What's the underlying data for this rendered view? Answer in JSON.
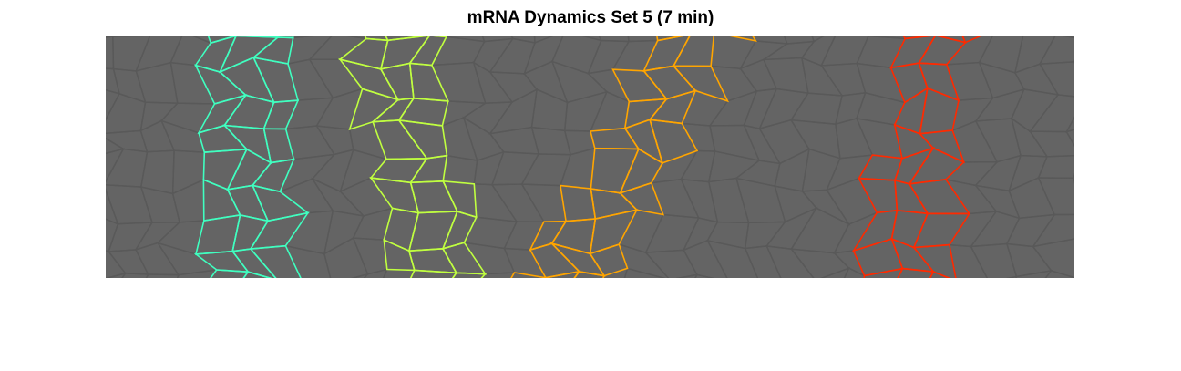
{
  "figure": {
    "title": "mRNA Dynamics Set 5 (7 min)"
  },
  "colors": {
    "background": "#ffffff",
    "tissue_fill": "#646464",
    "cell_border": "#595959",
    "stripes": [
      "#40ffc0",
      "#c0ff40",
      "#ffa500",
      "#ff2a00"
    ]
  },
  "stripes": [
    {
      "name": "stripe-1",
      "color": "#40ffc0"
    },
    {
      "name": "stripe-2",
      "color": "#c0ff40"
    },
    {
      "name": "stripe-3",
      "color": "#ffa500"
    },
    {
      "name": "stripe-4",
      "color": "#ff2a00"
    }
  ]
}
